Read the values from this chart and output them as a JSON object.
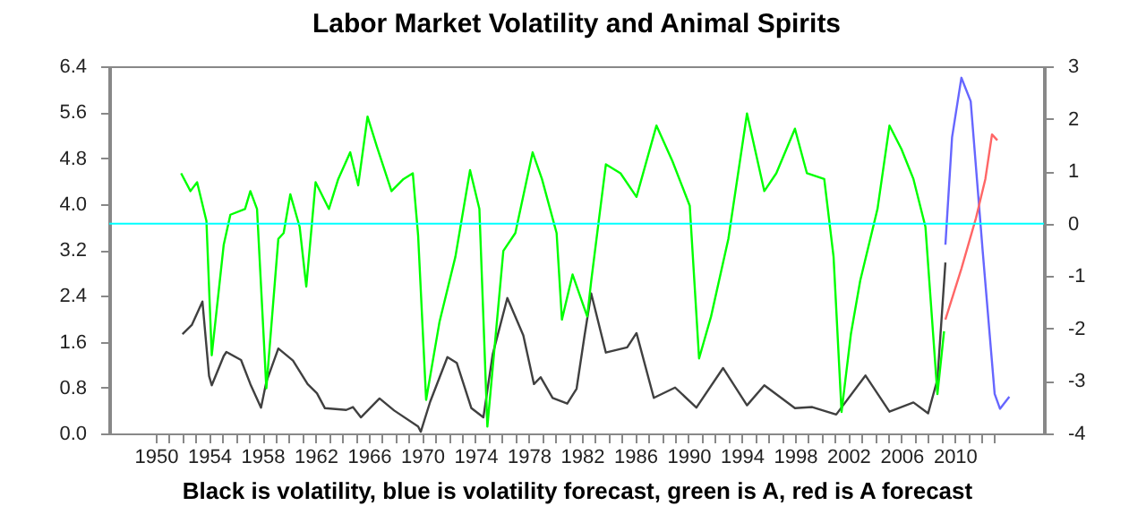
{
  "chart_data": {
    "type": "line",
    "title": "Labor Market Volatility and Animal Spirits",
    "xlabel": "Black is volatility, blue is volatility forecast, green is A, red is A forecast",
    "xlim": [
      1946.5,
      2016.7
    ],
    "xticks": [
      1950,
      {
        "value": 1951,
        "label": null
      },
      {
        "value": 1952,
        "label": null
      },
      {
        "value": 1953,
        "label": null
      },
      1954,
      {
        "value": 1955,
        "label": null
      },
      {
        "value": 1956,
        "label": null
      },
      {
        "value": 1957,
        "label": null
      },
      1958,
      {
        "value": 1959,
        "label": null
      },
      {
        "value": 1960,
        "label": null
      },
      {
        "value": 1961,
        "label": null
      },
      1962,
      {
        "value": 1963,
        "label": null
      },
      {
        "value": 1964,
        "label": null
      },
      {
        "value": 1965,
        "label": null
      },
      1966,
      {
        "value": 1967,
        "label": null
      },
      {
        "value": 1968,
        "label": null
      },
      {
        "value": 1969,
        "label": null
      },
      1970,
      {
        "value": 1971,
        "label": null
      },
      {
        "value": 1972,
        "label": null
      },
      {
        "value": 1973,
        "label": null
      },
      1974,
      {
        "value": 1975,
        "label": null
      },
      {
        "value": 1976,
        "label": null
      },
      {
        "value": 1977,
        "label": null
      },
      1978,
      {
        "value": 1979,
        "label": null
      },
      {
        "value": 1980,
        "label": null
      },
      {
        "value": 1981,
        "label": null
      },
      1982,
      {
        "value": 1983,
        "label": null
      },
      {
        "value": 1984,
        "label": null
      },
      {
        "value": 1985,
        "label": null
      },
      1986,
      {
        "value": 1987,
        "label": null
      },
      {
        "value": 1988,
        "label": null
      },
      {
        "value": 1989,
        "label": null
      },
      1990,
      {
        "value": 1991,
        "label": null
      },
      {
        "value": 1992,
        "label": null
      },
      {
        "value": 1993,
        "label": null
      },
      1994,
      {
        "value": 1995,
        "label": null
      },
      {
        "value": 1996,
        "label": null
      },
      {
        "value": 1997,
        "label": null
      },
      1998,
      {
        "value": 1999,
        "label": null
      },
      {
        "value": 2000,
        "label": null
      },
      {
        "value": 2001,
        "label": null
      },
      2002,
      {
        "value": 2003,
        "label": null
      },
      {
        "value": 2004,
        "label": null
      },
      {
        "value": 2005,
        "label": null
      },
      2006,
      {
        "value": 2007,
        "label": null
      },
      {
        "value": 2008,
        "label": null
      },
      {
        "value": 2009,
        "label": null
      },
      2010,
      {
        "value": 2011,
        "label": null
      },
      {
        "value": 2012,
        "label": null
      },
      {
        "value": 2013,
        "label": null
      }
    ],
    "ylim": [
      0,
      6.4
    ],
    "yticks": [
      {
        "value": 0,
        "label": "0.0"
      },
      0.8,
      1.6,
      2.4,
      3.2,
      {
        "value": 4,
        "label": "4.0"
      },
      4.8,
      5.6,
      6.4
    ],
    "y2lim": [
      -4,
      3
    ],
    "y2ticks": [
      -4,
      -3,
      -2,
      -1,
      0,
      1,
      2,
      3
    ],
    "ref_lines": [
      {
        "axis": "y2",
        "value": 0,
        "color": "#00ffff"
      }
    ],
    "series": [
      {
        "color": "#404040",
        "x": [
          1952.0,
          1952.7,
          1953.5,
          1954.0,
          1954.2,
          1955.1,
          1955.3,
          1956.4,
          1957.1,
          1957.9,
          1958.3,
          1959.2,
          1960.3,
          1961.4,
          1962.1,
          1962.7,
          1964.3,
          1964.8,
          1965.4,
          1966.8,
          1967.9,
          1969.7,
          1969.9,
          1970.6,
          1971.9,
          1972.6,
          1973.7,
          1974.6,
          1975.3,
          1976.4,
          1977.6,
          1978.4,
          1978.9,
          1979.8,
          1980.9,
          1981.6,
          1982.2,
          1982.7,
          1983.8,
          1985.4,
          1986.1,
          1987.4,
          1989.0,
          1990.6,
          1992.6,
          1994.4,
          1995.7,
          1998.0,
          1999.3,
          2001.1,
          2003.3,
          2005.1,
          2006.9,
          2008.0,
          2008.7,
          2009.3
        ],
        "values": [
          1.73,
          1.89,
          2.3,
          1.0,
          0.84,
          1.35,
          1.42,
          1.28,
          0.86,
          0.45,
          0.9,
          1.48,
          1.27,
          0.86,
          0.7,
          0.44,
          0.41,
          0.46,
          0.28,
          0.61,
          0.4,
          0.12,
          0.03,
          0.55,
          1.33,
          1.23,
          0.44,
          0.28,
          1.38,
          2.36,
          1.71,
          0.86,
          0.98,
          0.62,
          0.52,
          0.78,
          1.71,
          2.44,
          1.41,
          1.5,
          1.75,
          0.62,
          0.8,
          0.45,
          1.14,
          0.49,
          0.84,
          0.44,
          0.46,
          0.33,
          1.01,
          0.38,
          0.54,
          0.35,
          0.94,
          2.98
        ]
      },
      {
        "color": "#6666ff",
        "x": [
          2009.3,
          2009.8,
          2010.5,
          2011.2,
          2012.1,
          2013.0,
          2013.4,
          2014.1
        ],
        "values": [
          3.29,
          5.16,
          6.2,
          5.79,
          3.18,
          0.69,
          0.43,
          0.64
        ]
      },
      {
        "color": "#00ff00",
        "axis": "y2",
        "x": [
          1951.9,
          1952.6,
          1953.1,
          1953.8,
          1954.2,
          1955.1,
          1955.6,
          1956.7,
          1957.1,
          1957.6,
          1958.3,
          1959.2,
          1959.6,
          1960.1,
          1960.8,
          1961.3,
          1962.0,
          1963.0,
          1963.7,
          1964.6,
          1965.2,
          1965.9,
          1966.6,
          1967.7,
          1968.6,
          1969.3,
          1969.7,
          1970.3,
          1971.3,
          1972.5,
          1973.6,
          1974.3,
          1974.9,
          1976.1,
          1977.0,
          1978.3,
          1979.0,
          1980.1,
          1980.5,
          1981.3,
          1982.4,
          1982.7,
          1983.8,
          1984.9,
          1986.1,
          1987.6,
          1988.8,
          1990.1,
          1990.8,
          1991.7,
          1993.0,
          1994.4,
          1995.7,
          1996.6,
          1998.0,
          1998.9,
          2000.2,
          2000.9,
          2001.5,
          2002.2,
          2002.9,
          2004.2,
          2005.1,
          2006.0,
          2006.9,
          2007.8,
          2008.7,
          2009.2
        ],
        "values": [
          0.96,
          0.62,
          0.79,
          0.05,
          -2.51,
          -0.4,
          0.17,
          0.28,
          0.62,
          0.28,
          -3.14,
          -0.29,
          -0.18,
          0.56,
          -0.06,
          -1.2,
          0.79,
          0.28,
          0.85,
          1.36,
          0.73,
          2.04,
          1.47,
          0.62,
          0.85,
          0.96,
          -0.23,
          -3.36,
          -1.88,
          -0.63,
          1.02,
          0.28,
          -3.87,
          -0.52,
          -0.18,
          1.36,
          0.85,
          -0.18,
          -1.83,
          -0.97,
          -1.77,
          -1.09,
          1.13,
          0.96,
          0.51,
          1.87,
          1.19,
          0.34,
          -2.57,
          -1.77,
          -0.29,
          2.1,
          0.62,
          0.96,
          1.81,
          0.96,
          0.85,
          -0.63,
          -3.59,
          -2.11,
          -1.09,
          0.28,
          1.87,
          1.42,
          0.85,
          -0.06,
          -3.25,
          -2.05
        ]
      },
      {
        "color": "#ff6666",
        "axis": "y2",
        "x": [
          2009.3,
          2010.5,
          2011.6,
          2012.3,
          2012.8,
          2013.2
        ],
        "values": [
          -1.83,
          -0.86,
          0.11,
          0.85,
          1.7,
          1.59
        ]
      }
    ]
  }
}
